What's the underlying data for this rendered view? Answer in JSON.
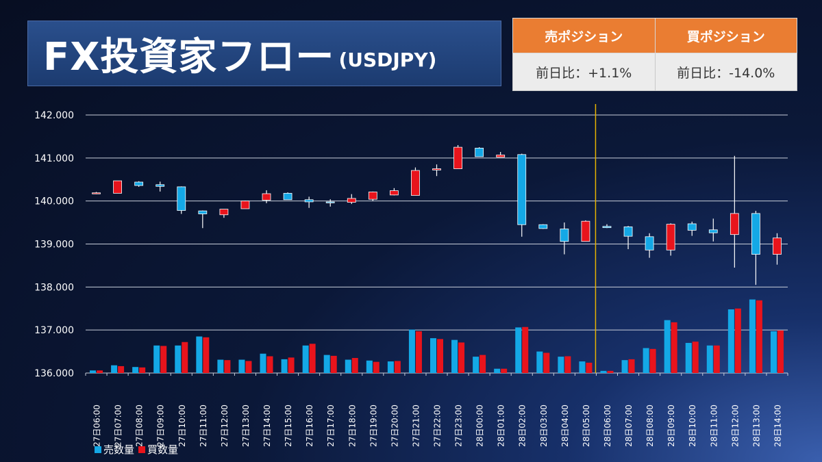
{
  "header": {
    "title": "FX投資家フロー",
    "subtitle": "(USDJPY)"
  },
  "positions": {
    "sell_label": "売ポジション",
    "buy_label": "買ポジション",
    "sell_change": "前日比：+1.1%",
    "buy_change": "前日比：-14.0%"
  },
  "legend": {
    "sell_volume": "売数量",
    "buy_volume": "買数量"
  },
  "colors": {
    "sell": "#14a8e6",
    "buy": "#e8141c",
    "divider": "#e8b400",
    "header_orange": "#ea7d32"
  },
  "chart_data": {
    "type": "bar",
    "title": "",
    "ylim": [
      136.0,
      142.0
    ],
    "yticks": [
      "136.000",
      "137.000",
      "138.000",
      "139.000",
      "140.000",
      "141.000",
      "142.000"
    ],
    "grid": true,
    "legend_position": "bottom-left",
    "categories": [
      "27日06:00",
      "27日07:00",
      "27日08:00",
      "27日09:00",
      "27日10:00",
      "27日11:00",
      "27日12:00",
      "27日13:00",
      "27日14:00",
      "27日15:00",
      "27日16:00",
      "27日17:00",
      "27日18:00",
      "27日19:00",
      "27日20:00",
      "27日21:00",
      "27日22:00",
      "27日23:00",
      "28日00:00",
      "28日01:00",
      "28日02:00",
      "28日03:00",
      "28日04:00",
      "28日05:00",
      "28日06:00",
      "28日07:00",
      "28日08:00",
      "28日09:00",
      "28日10:00",
      "28日11:00",
      "28日12:00",
      "28日13:00",
      "28日14:00"
    ],
    "divider_between": [
      "28日05:00",
      "28日06:00"
    ],
    "candles": [
      {
        "open": 140.17,
        "close": 140.19,
        "high": 140.21,
        "low": 140.16
      },
      {
        "open": 140.18,
        "close": 140.47,
        "high": 140.47,
        "low": 140.18
      },
      {
        "open": 140.44,
        "close": 140.36,
        "high": 140.46,
        "low": 140.33
      },
      {
        "open": 140.38,
        "close": 140.34,
        "high": 140.45,
        "low": 140.22
      },
      {
        "open": 140.33,
        "close": 139.78,
        "high": 140.34,
        "low": 139.7
      },
      {
        "open": 139.77,
        "close": 139.7,
        "high": 139.78,
        "low": 139.37
      },
      {
        "open": 139.68,
        "close": 139.81,
        "high": 139.81,
        "low": 139.61
      },
      {
        "open": 139.82,
        "close": 140.0,
        "high": 140.01,
        "low": 139.82
      },
      {
        "open": 140.02,
        "close": 140.17,
        "high": 140.25,
        "low": 139.95
      },
      {
        "open": 140.18,
        "close": 140.03,
        "high": 140.2,
        "low": 140.03
      },
      {
        "open": 140.03,
        "close": 139.98,
        "high": 140.1,
        "low": 139.84
      },
      {
        "open": 139.98,
        "close": 139.97,
        "high": 140.04,
        "low": 139.87
      },
      {
        "open": 139.97,
        "close": 140.06,
        "high": 140.16,
        "low": 139.93
      },
      {
        "open": 140.04,
        "close": 140.21,
        "high": 140.22,
        "low": 140.0
      },
      {
        "open": 140.14,
        "close": 140.24,
        "high": 140.3,
        "low": 140.13
      },
      {
        "open": 140.13,
        "close": 140.71,
        "high": 140.78,
        "low": 140.13
      },
      {
        "open": 140.72,
        "close": 140.75,
        "high": 140.85,
        "low": 140.58
      },
      {
        "open": 140.75,
        "close": 141.25,
        "high": 141.3,
        "low": 140.75
      },
      {
        "open": 141.23,
        "close": 141.03,
        "high": 141.25,
        "low": 141.03
      },
      {
        "open": 141.02,
        "close": 141.07,
        "high": 141.14,
        "low": 141.02
      },
      {
        "open": 141.08,
        "close": 139.45,
        "high": 141.1,
        "low": 139.17
      },
      {
        "open": 139.45,
        "close": 139.36,
        "high": 139.46,
        "low": 139.35
      },
      {
        "open": 139.35,
        "close": 139.06,
        "high": 139.5,
        "low": 138.76
      },
      {
        "open": 139.06,
        "close": 139.53,
        "high": 139.55,
        "low": 139.06
      },
      {
        "open": 139.41,
        "close": 139.38,
        "high": 139.46,
        "low": 139.37
      },
      {
        "open": 139.4,
        "close": 139.18,
        "high": 139.42,
        "low": 138.88
      },
      {
        "open": 139.17,
        "close": 138.86,
        "high": 139.25,
        "low": 138.68
      },
      {
        "open": 138.86,
        "close": 139.46,
        "high": 139.48,
        "low": 138.73
      },
      {
        "open": 139.47,
        "close": 139.32,
        "high": 139.52,
        "low": 139.19
      },
      {
        "open": 139.33,
        "close": 139.26,
        "high": 139.59,
        "low": 139.06
      },
      {
        "open": 139.22,
        "close": 139.71,
        "high": 141.05,
        "low": 138.45
      },
      {
        "open": 139.71,
        "close": 138.76,
        "high": 139.77,
        "low": 138.05
      },
      {
        "open": 138.76,
        "close": 139.14,
        "high": 139.25,
        "low": 138.52
      }
    ],
    "series": [
      {
        "name": "売数量",
        "values": [
          136.06,
          136.18,
          136.14,
          136.64,
          136.64,
          136.85,
          136.31,
          136.31,
          136.45,
          136.32,
          136.64,
          136.42,
          136.31,
          136.29,
          136.27,
          137.01,
          136.81,
          136.77,
          136.38,
          136.1,
          137.06,
          136.5,
          136.38,
          136.27,
          136.05,
          136.3,
          136.58,
          137.23,
          136.7,
          136.64,
          137.48,
          137.71,
          136.97
        ]
      },
      {
        "name": "買数量",
        "values": [
          136.06,
          136.16,
          136.13,
          136.63,
          136.72,
          136.83,
          136.3,
          136.28,
          136.39,
          136.36,
          136.68,
          136.4,
          136.35,
          136.26,
          136.28,
          136.97,
          136.79,
          136.71,
          136.42,
          136.1,
          137.07,
          136.47,
          136.39,
          136.24,
          136.05,
          136.32,
          136.56,
          137.18,
          136.73,
          136.64,
          137.5,
          137.69,
          136.99
        ]
      }
    ]
  }
}
